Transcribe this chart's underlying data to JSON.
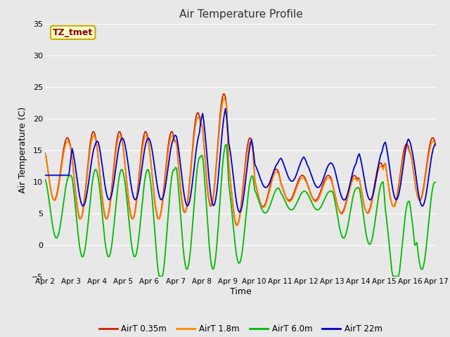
{
  "title": "Air Temperature Profile",
  "xlabel": "Time",
  "ylabel": "Air Temperature (C)",
  "ylim": [
    -5,
    35
  ],
  "xlim": [
    0,
    360
  ],
  "annotation_text": "TZ_tmet",
  "annotation_bg": "#ffffcc",
  "annotation_border": "#ccaa00",
  "annotation_color": "#880000",
  "bg_color": "#e8e8e8",
  "plot_bg": "#e8e8e8",
  "grid_color": "#ffffff",
  "series_colors": [
    "#cc2200",
    "#ff8800",
    "#00bb00",
    "#0000cc"
  ],
  "series_labels": [
    "AirT 0.35m",
    "AirT 1.8m",
    "AirT 6.0m",
    "AirT 22m"
  ],
  "xtick_labels": [
    "Apr 2",
    "Apr 3",
    "Apr 4",
    "Apr 5",
    "Apr 6",
    "Apr 7",
    "Apr 8",
    "Apr 9",
    "Apr 10",
    "Apr 11",
    "Apr 12",
    "Apr 13",
    "Apr 14",
    "Apr 15",
    "Apr 16",
    "Apr 17"
  ],
  "xtick_positions": [
    0,
    24,
    48,
    72,
    96,
    120,
    144,
    168,
    192,
    216,
    240,
    264,
    288,
    312,
    336,
    360
  ],
  "ytick_positions": [
    -5,
    0,
    5,
    10,
    15,
    20,
    25,
    30,
    35
  ]
}
